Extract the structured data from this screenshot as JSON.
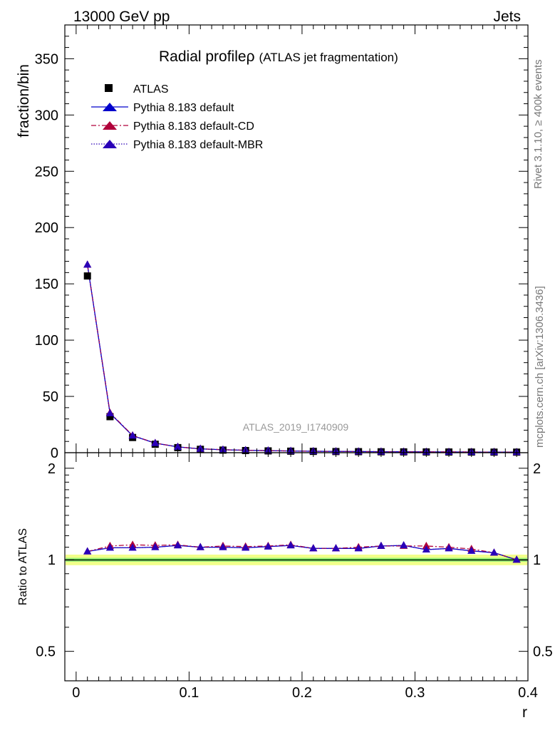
{
  "header": {
    "left": "13000 GeV pp",
    "right": "Jets"
  },
  "side_labels": {
    "rivet": "Rivet 3.1.10, ≥ 400k events",
    "mcplots": "mcplots.cern.ch [arXiv:1306.3436]"
  },
  "watermark": "ATLAS_2019_I1740909",
  "colors": {
    "data": "#000000",
    "default": "#0000cc",
    "cd": "#b0003a",
    "mbr": "#2a00b8",
    "band_outer": "#f2ff8a",
    "band_inner": "#9ef07a",
    "ref_line": "#008800"
  },
  "chart_data": [
    {
      "type": "scatter",
      "title": "Radial profile",
      "title_symbol": "ρ",
      "subtitle": "(ATLAS jet fragmentation)",
      "xlabel": "r",
      "ylabel": "fraction/bin",
      "xlim": [
        -0.01,
        0.4
      ],
      "ylim": [
        0,
        380
      ],
      "yticks": [
        0,
        50,
        100,
        150,
        200,
        250,
        300,
        350
      ],
      "ytick_labels": [
        "0",
        "50",
        "100",
        "150",
        "200",
        "250",
        "300",
        "350"
      ],
      "xticks": [
        0,
        0.1,
        0.2,
        0.3,
        0.4
      ],
      "xtick_labels": [
        "0",
        "0.1",
        "0.2",
        "0.3",
        "0.4"
      ],
      "x": [
        0.01,
        0.03,
        0.05,
        0.07,
        0.09,
        0.11,
        0.13,
        0.15,
        0.17,
        0.19,
        0.21,
        0.23,
        0.25,
        0.27,
        0.29,
        0.31,
        0.33,
        0.35,
        0.37,
        0.39
      ],
      "series": [
        {
          "name": "ATLAS",
          "key": "data",
          "style": "square",
          "values": [
            157,
            32,
            13.5,
            7.5,
            4.5,
            3.0,
            2.3,
            1.9,
            1.6,
            1.35,
            1.15,
            1.0,
            0.9,
            0.8,
            0.72,
            0.65,
            0.6,
            0.55,
            0.5,
            0.48
          ]
        },
        {
          "name": "Pythia 8.183 default",
          "key": "default",
          "style": "solid",
          "values": [
            167,
            35,
            15.1,
            8.5,
            5.1,
            3.4,
            2.6,
            2.15,
            1.8,
            1.52,
            1.29,
            1.12,
            1.0,
            0.9,
            0.81,
            0.71,
            0.66,
            0.59,
            0.53,
            0.48
          ]
        },
        {
          "name": "Pythia 8.183 default-CD",
          "key": "cd",
          "style": "dashdot",
          "values": [
            167,
            35.5,
            15.3,
            8.55,
            5.15,
            3.4,
            2.63,
            2.17,
            1.82,
            1.53,
            1.28,
            1.12,
            1.01,
            0.91,
            0.81,
            0.73,
            0.67,
            0.61,
            0.53,
            0.48
          ]
        },
        {
          "name": "Pythia 8.183 default-MBR",
          "key": "mbr",
          "style": "dotted",
          "values": [
            167,
            35,
            15.1,
            8.5,
            5.1,
            3.4,
            2.6,
            2.15,
            1.8,
            1.52,
            1.29,
            1.12,
            1.0,
            0.9,
            0.81,
            0.71,
            0.66,
            0.59,
            0.53,
            0.48
          ]
        }
      ]
    },
    {
      "type": "line",
      "ylabel": "Ratio to ATLAS",
      "xlabel": "r",
      "ylim": [
        0.4,
        2.25
      ],
      "log_y": true,
      "yticks": [
        0.5,
        1,
        2
      ],
      "ytick_labels": [
        "0.5",
        "1",
        "2"
      ],
      "x": [
        0.01,
        0.03,
        0.05,
        0.07,
        0.09,
        0.11,
        0.13,
        0.15,
        0.17,
        0.19,
        0.21,
        0.23,
        0.25,
        0.27,
        0.29,
        0.31,
        0.33,
        0.35,
        0.37,
        0.39
      ],
      "band": {
        "outer": 0.04,
        "inner": 0.015
      },
      "series": [
        {
          "name": "Pythia 8.183 default",
          "key": "default",
          "style": "solid",
          "values": [
            1.065,
            1.095,
            1.095,
            1.1,
            1.115,
            1.1,
            1.1,
            1.095,
            1.105,
            1.115,
            1.09,
            1.09,
            1.09,
            1.11,
            1.115,
            1.08,
            1.09,
            1.07,
            1.055,
            1.0
          ]
        },
        {
          "name": "Pythia 8.183 default-CD",
          "key": "cd",
          "style": "dashdot",
          "values": [
            1.065,
            1.11,
            1.12,
            1.115,
            1.12,
            1.1,
            1.11,
            1.105,
            1.11,
            1.12,
            1.09,
            1.09,
            1.1,
            1.11,
            1.11,
            1.11,
            1.1,
            1.085,
            1.055,
            1.0
          ]
        },
        {
          "name": "Pythia 8.183 default-MBR",
          "key": "mbr",
          "style": "dotted",
          "values": [
            1.065,
            1.095,
            1.095,
            1.1,
            1.115,
            1.1,
            1.1,
            1.095,
            1.105,
            1.115,
            1.09,
            1.09,
            1.09,
            1.11,
            1.115,
            1.08,
            1.09,
            1.07,
            1.055,
            1.0
          ]
        }
      ]
    }
  ]
}
